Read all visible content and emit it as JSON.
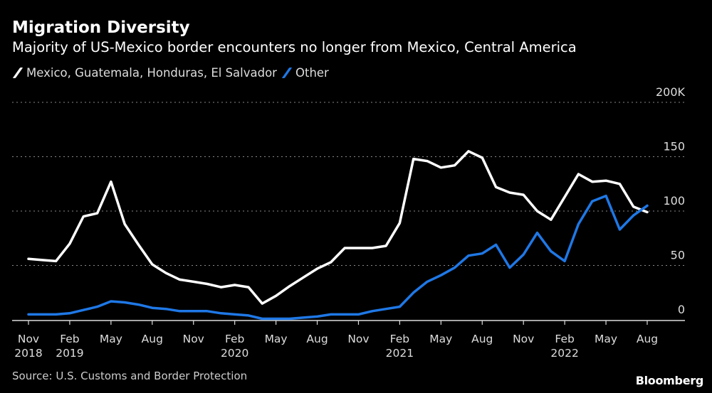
{
  "chart_data": {
    "type": "line",
    "title": "Migration Diversity",
    "subtitle": "Majority of US-Mexico border encounters no longer from Mexico, Central America",
    "x": [
      "2018-11",
      "2018-12",
      "2019-01",
      "2019-02",
      "2019-03",
      "2019-04",
      "2019-05",
      "2019-06",
      "2019-07",
      "2019-08",
      "2019-09",
      "2019-10",
      "2019-11",
      "2019-12",
      "2020-01",
      "2020-02",
      "2020-03",
      "2020-04",
      "2020-05",
      "2020-06",
      "2020-07",
      "2020-08",
      "2020-09",
      "2020-10",
      "2020-11",
      "2020-12",
      "2021-01",
      "2021-02",
      "2021-03",
      "2021-04",
      "2021-05",
      "2021-06",
      "2021-07",
      "2021-08",
      "2021-09",
      "2021-10",
      "2021-11",
      "2021-12",
      "2022-01",
      "2022-02",
      "2022-03",
      "2022-04",
      "2022-05",
      "2022-06",
      "2022-07",
      "2022-08"
    ],
    "series": [
      {
        "name": "Mexico, Guatemala, Honduras, El Salvador",
        "color": "#ffffff",
        "values": [
          56,
          55,
          54,
          70,
          95,
          98,
          127,
          88,
          69,
          51,
          43,
          37,
          35,
          33,
          30,
          32,
          30,
          15,
          22,
          31,
          39,
          47,
          53,
          66,
          66,
          66,
          68,
          89,
          148,
          146,
          140,
          142,
          155,
          149,
          122,
          117,
          115,
          100,
          92,
          113,
          134,
          127,
          128,
          125,
          104,
          99
        ]
      },
      {
        "name": "Other",
        "color": "#1f78e6",
        "values": [
          5,
          5,
          5,
          6,
          9,
          12,
          17,
          16,
          14,
          11,
          10,
          8,
          8,
          8,
          6,
          5,
          4,
          1,
          1,
          1,
          2,
          3,
          5,
          5,
          5,
          8,
          10,
          12,
          25,
          35,
          41,
          48,
          59,
          61,
          69,
          48,
          60,
          80,
          63,
          54,
          88,
          109,
          114,
          83,
          96,
          105
        ]
      }
    ],
    "ylim": [
      0,
      200
    ],
    "yticks": [
      {
        "value": 0,
        "label": "0"
      },
      {
        "value": 50,
        "label": "50"
      },
      {
        "value": 100,
        "label": "100"
      },
      {
        "value": 150,
        "label": "150"
      },
      {
        "value": 200,
        "label": "200K"
      }
    ],
    "xticks": [
      {
        "x": "2018-11",
        "label": "Nov",
        "year": "2018"
      },
      {
        "x": "2019-02",
        "label": "Feb",
        "year": "2019"
      },
      {
        "x": "2019-05",
        "label": "May",
        "year": ""
      },
      {
        "x": "2019-08",
        "label": "Aug",
        "year": ""
      },
      {
        "x": "2019-11",
        "label": "Nov",
        "year": ""
      },
      {
        "x": "2020-02",
        "label": "Feb",
        "year": "2020"
      },
      {
        "x": "2020-05",
        "label": "May",
        "year": ""
      },
      {
        "x": "2020-08",
        "label": "Aug",
        "year": ""
      },
      {
        "x": "2020-11",
        "label": "Nov",
        "year": ""
      },
      {
        "x": "2021-02",
        "label": "Feb",
        "year": "2021"
      },
      {
        "x": "2021-05",
        "label": "May",
        "year": ""
      },
      {
        "x": "2021-08",
        "label": "Aug",
        "year": ""
      },
      {
        "x": "2021-11",
        "label": "Nov",
        "year": ""
      },
      {
        "x": "2022-02",
        "label": "Feb",
        "year": "2022"
      },
      {
        "x": "2022-05",
        "label": "May",
        "year": ""
      },
      {
        "x": "2022-08",
        "label": "Aug",
        "year": ""
      }
    ],
    "grid": true,
    "legend_position": "top-left"
  },
  "footer": {
    "source": "Source: U.S. Customs and Border Protection",
    "logo": "Bloomberg"
  }
}
